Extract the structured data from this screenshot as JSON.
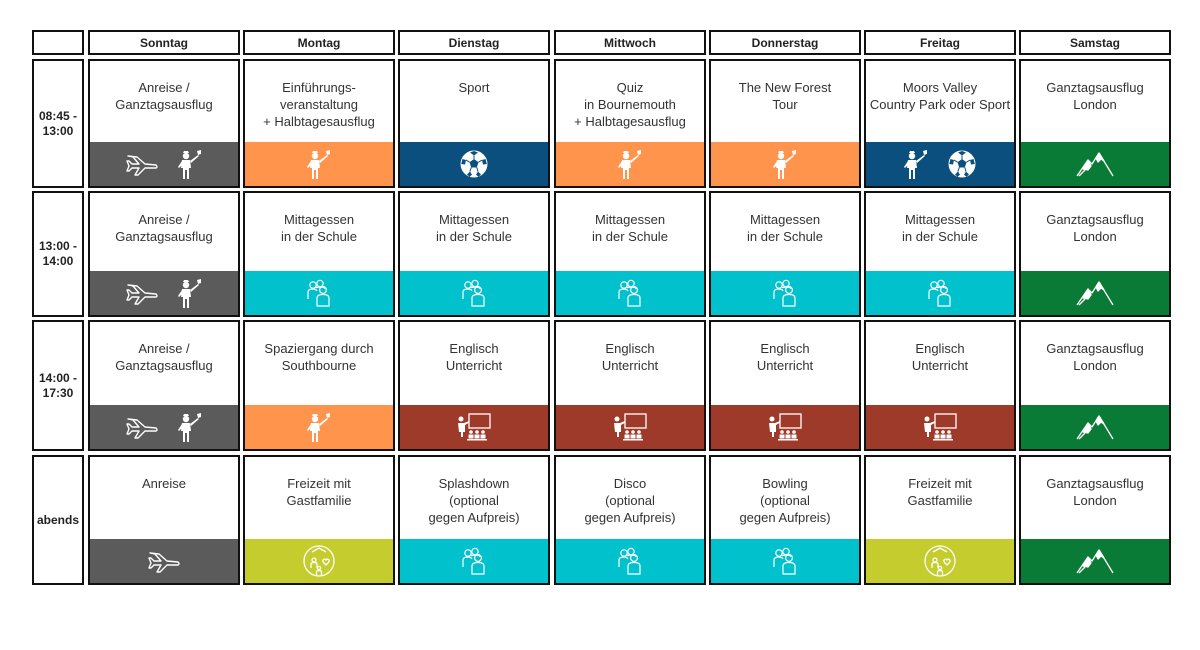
{
  "days": [
    "Sonntag",
    "Montag",
    "Dienstag",
    "Mittwoch",
    "Donnerstag",
    "Freitag",
    "Samstag"
  ],
  "colors": {
    "grey": "#5b5b5b",
    "orange": "#ff944d",
    "blue": "#0b4f7e",
    "cyan": "#00c1cc",
    "red": "#9e3a2a",
    "green": "#0a7b37",
    "lime": "#c5cc2d"
  },
  "rows": [
    {
      "time": "08:45 -\n13:00",
      "cells": [
        {
          "text": "Anreise /\nGanztagsausflug",
          "color": "grey",
          "icons": [
            "airplane-icon",
            "guide-icon"
          ]
        },
        {
          "text": "Einführungs-\nveranstaltung\n+ Halbtagesausflug",
          "color": "orange",
          "icons": [
            "guide-icon"
          ]
        },
        {
          "text": "Sport",
          "color": "blue",
          "icons": [
            "football-icon"
          ]
        },
        {
          "text": "Quiz\nin Bournemouth\n+ Halbtagesausflug",
          "color": "orange",
          "icons": [
            "guide-icon"
          ]
        },
        {
          "text": "The New Forest\nTour",
          "color": "orange",
          "icons": [
            "guide-icon"
          ]
        },
        {
          "text": "Moors Valley\nCountry Park oder Sport",
          "color": "blue",
          "icons": [
            "guide-icon",
            "football-icon"
          ]
        },
        {
          "text": "Ganztagsausflug\nLondon",
          "color": "green",
          "icons": [
            "mountain-icon"
          ]
        }
      ]
    },
    {
      "time": "13:00 -\n14:00",
      "cells": [
        {
          "text": "Anreise /\nGanztagsausflug",
          "color": "grey",
          "icons": [
            "airplane-icon",
            "guide-icon"
          ]
        },
        {
          "text": "Mittagessen\nin der Schule",
          "color": "cyan",
          "icons": [
            "group-icon"
          ]
        },
        {
          "text": "Mittagessen\nin der Schule",
          "color": "cyan",
          "icons": [
            "group-icon"
          ]
        },
        {
          "text": "Mittagessen\nin der Schule",
          "color": "cyan",
          "icons": [
            "group-icon"
          ]
        },
        {
          "text": "Mittagessen\nin der Schule",
          "color": "cyan",
          "icons": [
            "group-icon"
          ]
        },
        {
          "text": "Mittagessen\nin der Schule",
          "color": "cyan",
          "icons": [
            "group-icon"
          ]
        },
        {
          "text": "Ganztagsausflug\nLondon",
          "color": "green",
          "icons": [
            "mountain-icon"
          ]
        }
      ]
    },
    {
      "time": "14:00 -\n17:30",
      "cells": [
        {
          "text": "Anreise /\nGanztagsausflug",
          "color": "grey",
          "icons": [
            "airplane-icon",
            "guide-icon"
          ]
        },
        {
          "text": "Spaziergang durch\nSouthbourne",
          "color": "orange",
          "icons": [
            "guide-icon"
          ]
        },
        {
          "text": "Englisch\nUnterricht",
          "color": "red",
          "icons": [
            "classroom-icon"
          ]
        },
        {
          "text": "Englisch\nUnterricht",
          "color": "red",
          "icons": [
            "classroom-icon"
          ]
        },
        {
          "text": "Englisch\nUnterricht",
          "color": "red",
          "icons": [
            "classroom-icon"
          ]
        },
        {
          "text": "Englisch\nUnterricht",
          "color": "red",
          "icons": [
            "classroom-icon"
          ]
        },
        {
          "text": "Ganztagsausflug\nLondon",
          "color": "green",
          "icons": [
            "mountain-icon"
          ]
        }
      ]
    },
    {
      "time": "abends",
      "cells": [
        {
          "text": "Anreise",
          "color": "grey",
          "icons": [
            "airplane-icon"
          ]
        },
        {
          "text": "Freizeit mit\nGastfamilie",
          "color": "lime",
          "icons": [
            "host-family-icon"
          ]
        },
        {
          "text": "Splashdown\n(optional\ngegen Aufpreis)",
          "color": "cyan",
          "icons": [
            "group-icon"
          ]
        },
        {
          "text": "Disco\n(optional\ngegen Aufpreis)",
          "color": "cyan",
          "icons": [
            "group-icon"
          ]
        },
        {
          "text": "Bowling\n(optional\ngegen Aufpreis)",
          "color": "cyan",
          "icons": [
            "group-icon"
          ]
        },
        {
          "text": "Freizeit mit\nGastfamilie",
          "color": "lime",
          "icons": [
            "host-family-icon"
          ]
        },
        {
          "text": "Ganztagsausflug\nLondon",
          "color": "green",
          "icons": [
            "mountain-icon"
          ]
        }
      ]
    }
  ]
}
